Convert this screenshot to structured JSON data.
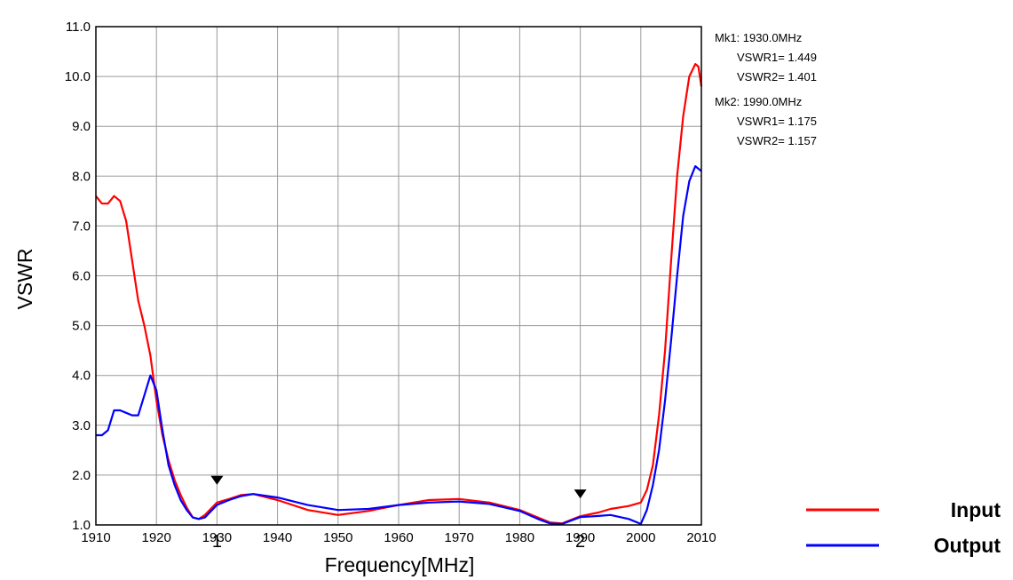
{
  "chart_data": {
    "type": "line",
    "title": "",
    "xlabel": "Frequency[MHz]",
    "ylabel": "VSWR",
    "xlim": [
      1910,
      2010
    ],
    "ylim": [
      1.0,
      11.0
    ],
    "grid": true,
    "x_ticks": [
      1910,
      1920,
      1930,
      1940,
      1950,
      1960,
      1970,
      1980,
      1990,
      2000,
      2010
    ],
    "x_tick_labels": [
      "1910",
      "1920",
      "1930",
      "1940",
      "1950",
      "1960",
      "1970",
      "1980",
      "1990",
      "2000",
      "2010"
    ],
    "y_ticks": [
      1,
      2,
      3,
      4,
      5,
      6,
      7,
      8,
      9,
      10,
      11
    ],
    "y_tick_labels": [
      "1.0",
      "2.0",
      "3.0",
      "4.0",
      "5.0",
      "6.0",
      "7.0",
      "8.0",
      "9.0",
      "10.0",
      "11.0"
    ],
    "legend_position": "bottom-right",
    "series": [
      {
        "name": "Input",
        "color": "#ff0000",
        "points": [
          [
            1910,
            7.6
          ],
          [
            1911,
            7.45
          ],
          [
            1912,
            7.45
          ],
          [
            1913,
            7.6
          ],
          [
            1914,
            7.5
          ],
          [
            1915,
            7.1
          ],
          [
            1916,
            6.3
          ],
          [
            1917,
            5.5
          ],
          [
            1918,
            5.0
          ],
          [
            1919,
            4.4
          ],
          [
            1920,
            3.5
          ],
          [
            1921,
            2.8
          ],
          [
            1922,
            2.3
          ],
          [
            1923,
            1.9
          ],
          [
            1924,
            1.6
          ],
          [
            1925,
            1.35
          ],
          [
            1926,
            1.15
          ],
          [
            1927,
            1.12
          ],
          [
            1928,
            1.2
          ],
          [
            1930,
            1.449
          ],
          [
            1932,
            1.52
          ],
          [
            1934,
            1.6
          ],
          [
            1936,
            1.62
          ],
          [
            1940,
            1.5
          ],
          [
            1945,
            1.3
          ],
          [
            1950,
            1.2
          ],
          [
            1955,
            1.28
          ],
          [
            1960,
            1.4
          ],
          [
            1965,
            1.5
          ],
          [
            1970,
            1.52
          ],
          [
            1975,
            1.45
          ],
          [
            1980,
            1.3
          ],
          [
            1983,
            1.15
          ],
          [
            1985,
            1.05
          ],
          [
            1987,
            1.03
          ],
          [
            1990,
            1.175
          ],
          [
            1993,
            1.25
          ],
          [
            1995,
            1.32
          ],
          [
            1998,
            1.38
          ],
          [
            2000,
            1.45
          ],
          [
            2001,
            1.7
          ],
          [
            2002,
            2.2
          ],
          [
            2003,
            3.2
          ],
          [
            2004,
            4.5
          ],
          [
            2005,
            6.3
          ],
          [
            2006,
            8.0
          ],
          [
            2007,
            9.2
          ],
          [
            2008,
            10.0
          ],
          [
            2009,
            10.25
          ],
          [
            2009.5,
            10.2
          ],
          [
            2010,
            9.8
          ]
        ]
      },
      {
        "name": "Output",
        "color": "#0000ff",
        "points": [
          [
            1910,
            2.8
          ],
          [
            1911,
            2.8
          ],
          [
            1912,
            2.9
          ],
          [
            1913,
            3.3
          ],
          [
            1914,
            3.3
          ],
          [
            1915,
            3.25
          ],
          [
            1916,
            3.2
          ],
          [
            1917,
            3.2
          ],
          [
            1918,
            3.6
          ],
          [
            1919,
            4.0
          ],
          [
            1920,
            3.7
          ],
          [
            1921,
            2.9
          ],
          [
            1922,
            2.2
          ],
          [
            1923,
            1.8
          ],
          [
            1924,
            1.5
          ],
          [
            1925,
            1.3
          ],
          [
            1926,
            1.15
          ],
          [
            1927,
            1.12
          ],
          [
            1928,
            1.15
          ],
          [
            1930,
            1.401
          ],
          [
            1932,
            1.5
          ],
          [
            1934,
            1.58
          ],
          [
            1936,
            1.62
          ],
          [
            1940,
            1.55
          ],
          [
            1945,
            1.4
          ],
          [
            1950,
            1.3
          ],
          [
            1955,
            1.32
          ],
          [
            1960,
            1.4
          ],
          [
            1965,
            1.45
          ],
          [
            1970,
            1.47
          ],
          [
            1975,
            1.42
          ],
          [
            1980,
            1.28
          ],
          [
            1983,
            1.12
          ],
          [
            1985,
            1.03
          ],
          [
            1987,
            1.02
          ],
          [
            1990,
            1.157
          ],
          [
            1993,
            1.18
          ],
          [
            1995,
            1.2
          ],
          [
            1998,
            1.12
          ],
          [
            2000,
            1.02
          ],
          [
            2001,
            1.3
          ],
          [
            2002,
            1.8
          ],
          [
            2003,
            2.5
          ],
          [
            2004,
            3.5
          ],
          [
            2005,
            4.7
          ],
          [
            2006,
            6.0
          ],
          [
            2007,
            7.2
          ],
          [
            2008,
            7.9
          ],
          [
            2009,
            8.2
          ],
          [
            2010,
            8.1
          ]
        ]
      }
    ],
    "markers": [
      {
        "label": "1",
        "x": 1930
      },
      {
        "label": "2",
        "x": 1990
      }
    ],
    "marker_info": [
      {
        "header": "Mk1: 1930.0MHz",
        "lines": [
          "VSWR1= 1.449",
          "VSWR2= 1.401"
        ]
      },
      {
        "header": "Mk2: 1990.0MHz",
        "lines": [
          "VSWR1= 1.175",
          "VSWR2= 1.157"
        ]
      }
    ],
    "legend": [
      {
        "label": "Input",
        "color": "#ff0000"
      },
      {
        "label": "Output",
        "color": "#0000ff"
      }
    ]
  }
}
